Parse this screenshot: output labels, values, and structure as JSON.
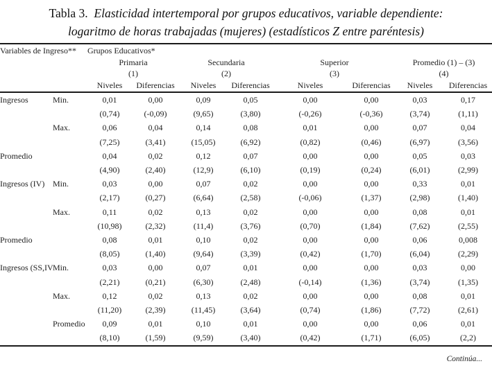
{
  "title": {
    "prefix": "Tabla 3.",
    "line1_italic": "Elasticidad intertemporal por grupos educativos, variable dependiente:",
    "line2_italic": "logaritmo de horas trabajadas (mujeres) (estadísticos Z entre paréntesis)"
  },
  "table": {
    "corner_label": "Variables de Ingreso**",
    "group_header": "Grupos Educativos*",
    "groups": [
      {
        "name": "Primaria",
        "number": "(1)"
      },
      {
        "name": "Secundaria",
        "number": "(2)"
      },
      {
        "name": "Superior",
        "number": "(3)"
      },
      {
        "name": "Promedio (1) – (3)",
        "number": "(4)"
      }
    ],
    "subheaders": [
      "Niveles",
      "Diferencias"
    ],
    "rows": [
      {
        "label1": "Ingresos",
        "label2": "Min.",
        "values": [
          "0,01",
          "0,00",
          "0,09",
          "0,05",
          "0,00",
          "0,00",
          "0,03",
          "0,17"
        ],
        "z": [
          "(0,74)",
          "(-0,09)",
          "(9,65)",
          "(3,80)",
          "(-0,26)",
          "(-0,36)",
          "(3,74)",
          "(1,11)"
        ]
      },
      {
        "label1": "",
        "label2": "Max.",
        "values": [
          "0,06",
          "0,04",
          "0,14",
          "0,08",
          "0,01",
          "0,00",
          "0,07",
          "0,04"
        ],
        "z": [
          "(7,25)",
          "(3,41)",
          "(15,05)",
          "(6,92)",
          "(0,82)",
          "(0,46)",
          "(6,97)",
          "(3,56)"
        ]
      },
      {
        "label1": "Promedio",
        "label2": "",
        "values": [
          "0,04",
          "0,02",
          "0,12",
          "0,07",
          "0,00",
          "0,00",
          "0,05",
          "0,03"
        ],
        "z": [
          "(4,90)",
          "(2,40)",
          "(12,9)",
          "(6,10)",
          "(0,19)",
          "(0,24)",
          "(6,01)",
          "(2,99)"
        ]
      },
      {
        "label1": "Ingresos (IV)",
        "label2": "Min.",
        "values": [
          "0,03",
          "0,00",
          "0,07",
          "0,02",
          "0,00",
          "0,00",
          "0,33",
          "0,01"
        ],
        "z": [
          "(2,17)",
          "(0,27)",
          "(6,64)",
          "(2,58)",
          "(-0,06)",
          "(1,37)",
          "(2,98)",
          "(1,40)"
        ]
      },
      {
        "label1": "",
        "label2": "Max.",
        "values": [
          "0,11",
          "0,02",
          "0,13",
          "0,02",
          "0,00",
          "0,00",
          "0,08",
          "0,01"
        ],
        "z": [
          "(10,98)",
          "(2,32)",
          "(11,4)",
          "(3,76)",
          "(0,70)",
          "(1,84)",
          "(7,62)",
          "(2,55)"
        ]
      },
      {
        "label1": "Promedio",
        "label2": "",
        "values": [
          "0,08",
          "0,01",
          "0,10",
          "0,02",
          "0,00",
          "0,00",
          "0,06",
          "0,008"
        ],
        "z": [
          "(8,05)",
          "(1,40)",
          "(9,64)",
          "(3,39)",
          "(0,42)",
          "(1,70)",
          "(6,04)",
          "(2,29)"
        ]
      },
      {
        "label1": "Ingresos (SS,IV)",
        "label2": "Min.",
        "values": [
          "0,03",
          "0,00",
          "0,07",
          "0,01",
          "0,00",
          "0,00",
          "0,03",
          "0,00"
        ],
        "z": [
          "(2,21)",
          "(0,21)",
          "(6,30)",
          "(2,48)",
          "(-0,14)",
          "(1,36)",
          "(3,74)",
          "(1,35)"
        ]
      },
      {
        "label1": "",
        "label2": "Max.",
        "values": [
          "0,12",
          "0,02",
          "0,13",
          "0,02",
          "0,00",
          "0,00",
          "0,08",
          "0,01"
        ],
        "z": [
          "(11,20)",
          "(2,39)",
          "(11,45)",
          "(3,64)",
          "(0,74)",
          "(1,86)",
          "(7,72)",
          "(2,61)"
        ]
      },
      {
        "label1": "",
        "label2": "Promedio",
        "values": [
          "0,09",
          "0,01",
          "0,10",
          "0,01",
          "0,00",
          "0,00",
          "0,06",
          "0,01"
        ],
        "z": [
          "(8,10)",
          "(1,59)",
          "(9,59)",
          "(3,40)",
          "(0,42)",
          "(1,71)",
          "(6,05)",
          "(2,2)"
        ]
      }
    ]
  },
  "footer": {
    "continua": "Continúa..."
  }
}
